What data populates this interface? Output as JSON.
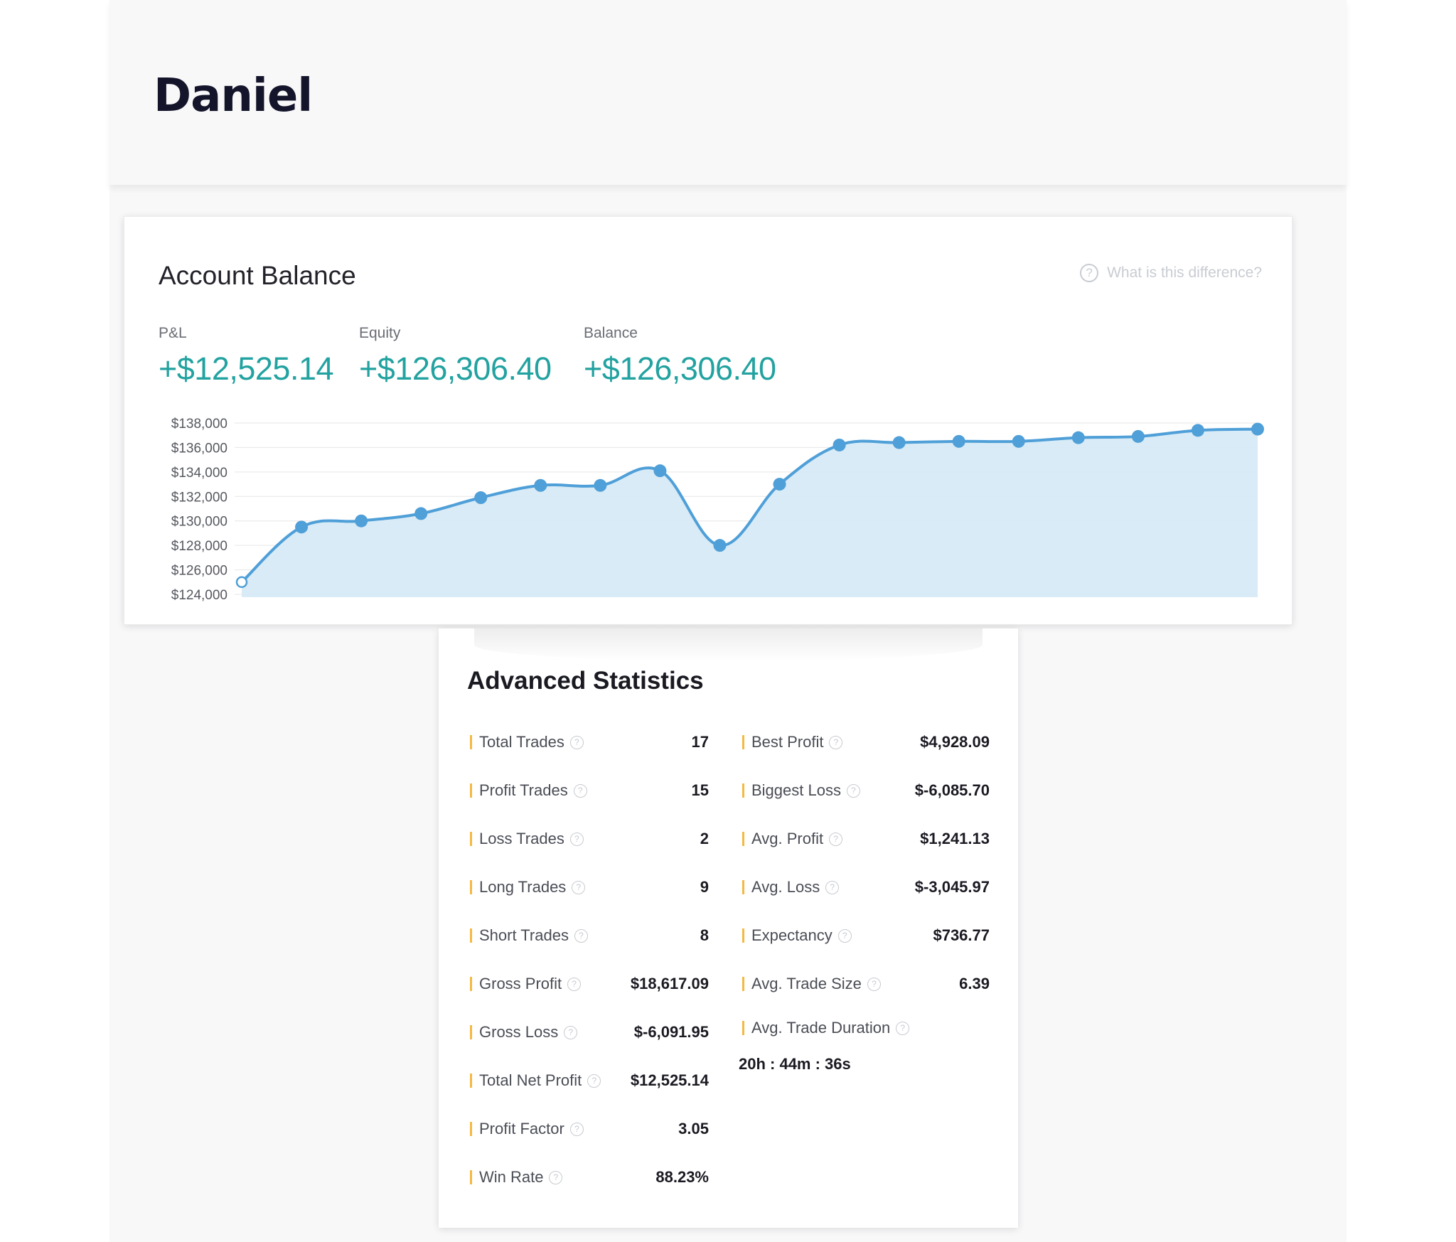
{
  "header": {
    "name": "Daniel"
  },
  "balance": {
    "title": "Account Balance",
    "help_text": "What is this difference?",
    "metrics": [
      {
        "label": "P&L",
        "value": "+$12,525.14"
      },
      {
        "label": "Equity",
        "value": "+$126,306.40"
      },
      {
        "label": "Balance",
        "value": "+$126,306.40"
      }
    ],
    "accent_color": "#22a2a0"
  },
  "chart_data": {
    "type": "area",
    "title": "",
    "xlabel": "",
    "ylabel": "",
    "ylim": [
      124000,
      138000
    ],
    "y_ticks": [
      "$138,000",
      "$136,000",
      "$134,000",
      "$132,000",
      "$130,000",
      "$128,000",
      "$126,000",
      "$124,000"
    ],
    "grid": true,
    "line_color": "#4f9fd8",
    "fill_color": "#d6eaf6",
    "series": [
      {
        "values": [
          125000,
          129500,
          130000,
          130600,
          131900,
          132900,
          132900,
          134100,
          128000,
          133000,
          136200,
          136400,
          136500,
          136500,
          136800,
          136900,
          137400,
          137500
        ]
      }
    ]
  },
  "stats": {
    "title": "Advanced Statistics",
    "left": [
      {
        "label": "Total Trades",
        "value": "17"
      },
      {
        "label": "Profit Trades",
        "value": "15"
      },
      {
        "label": "Loss Trades",
        "value": "2"
      },
      {
        "label": "Long Trades",
        "value": "9"
      },
      {
        "label": "Short Trades",
        "value": "8"
      },
      {
        "label": "Gross Profit",
        "value": "$18,617.09"
      },
      {
        "label": "Gross Loss",
        "value": "$-6,091.95"
      },
      {
        "label": "Total Net Profit",
        "value": "$12,525.14"
      },
      {
        "label": "Profit Factor",
        "value": "3.05"
      },
      {
        "label": "Win Rate",
        "value": "88.23%"
      }
    ],
    "right": [
      {
        "label": "Best Profit",
        "value": "$4,928.09"
      },
      {
        "label": "Biggest Loss",
        "value": "$-6,085.70"
      },
      {
        "label": "Avg. Profit",
        "value": "$1,241.13"
      },
      {
        "label": "Avg. Loss",
        "value": "$-3,045.97"
      },
      {
        "label": "Expectancy",
        "value": "$736.77"
      },
      {
        "label": "Avg. Trade Size",
        "value": "6.39"
      }
    ],
    "duration": {
      "label": "Avg. Trade Duration",
      "value": "20h : 44m : 36s"
    },
    "help_glyph": "?",
    "bar_color": "#f5b942"
  }
}
